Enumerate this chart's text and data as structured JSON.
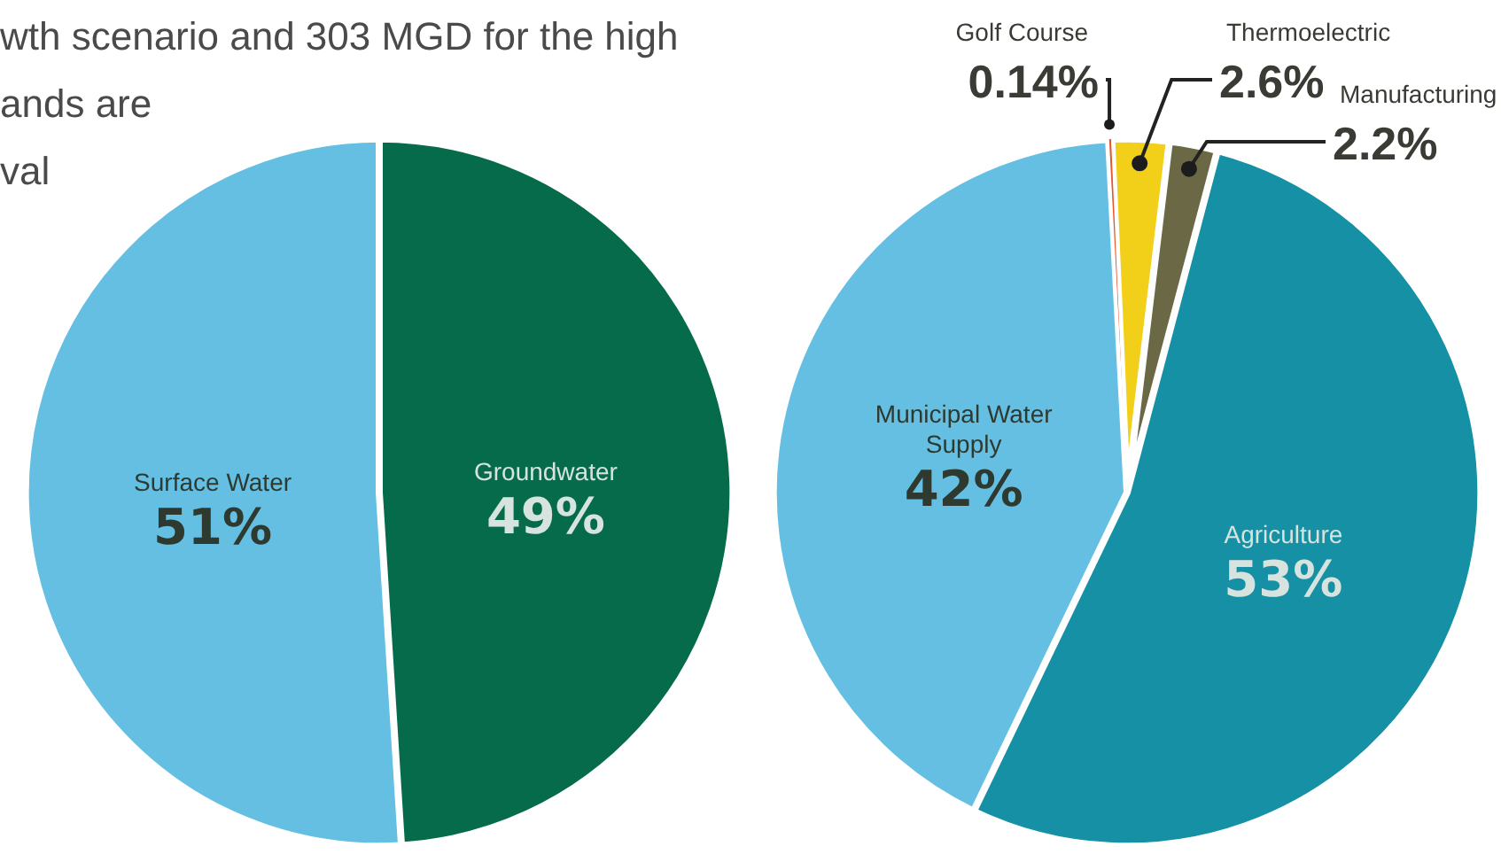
{
  "chart_data": [
    {
      "type": "pie",
      "annotations": [
        "wth scenario and 303 MGD for the high",
        "ands are",
        "val"
      ],
      "categories": [
        "Groundwater",
        "Surface Water"
      ],
      "values": [
        49,
        51
      ],
      "colors": [
        "#066b4b",
        "#64bfe2"
      ],
      "value_labels": [
        "49%",
        "51%"
      ]
    },
    {
      "type": "pie",
      "categories": [
        "Golf Course",
        "Thermoelectric",
        "Manufacturing",
        "Agriculture",
        "Municipal Water Supply"
      ],
      "values": [
        0.14,
        2.6,
        2.2,
        53,
        42
      ],
      "colors": [
        "#e2582a",
        "#f2d01a",
        "#6b6945",
        "#1590a4",
        "#64bfe2"
      ],
      "value_labels": [
        "0.14%",
        "2.6%",
        "2.2%",
        "53%",
        "42%"
      ]
    }
  ]
}
